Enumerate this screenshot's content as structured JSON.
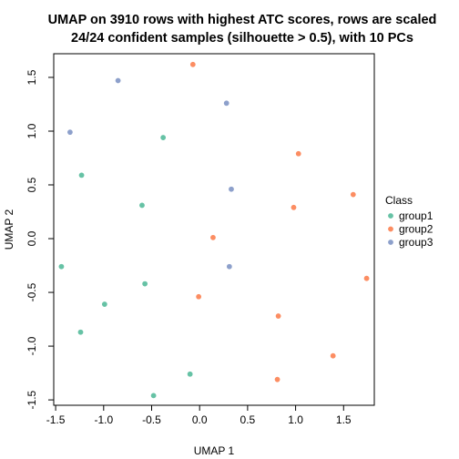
{
  "chart_data": {
    "type": "scatter",
    "title_line1": "UMAP on 3910 rows with highest ATC scores, rows are scaled",
    "title_line2": "24/24 confident samples (silhouette > 0.5), with 10 PCs",
    "xlabel": "UMAP 1",
    "ylabel": "UMAP 2",
    "xlim": [
      -1.52,
      1.82
    ],
    "ylim": [
      -1.55,
      1.72
    ],
    "xticks": [
      -1.5,
      -1.0,
      -0.5,
      0.0,
      0.5,
      1.0,
      1.5
    ],
    "xtick_labels": [
      "-1.5",
      "-1.0",
      "-0.5",
      "0.0",
      "0.5",
      "1.0",
      "1.5"
    ],
    "yticks": [
      -1.5,
      -1.0,
      -0.5,
      0.0,
      0.5,
      1.0,
      1.5
    ],
    "ytick_labels": [
      "-1.5",
      "-1.0",
      "-0.5",
      "0.0",
      "0.5",
      "1.0",
      "1.5"
    ],
    "grid": false,
    "legend": {
      "title": "Class",
      "placement": "right"
    },
    "series": [
      {
        "name": "group1",
        "color": "#66C2A5",
        "points": [
          [
            -0.38,
            0.94
          ],
          [
            -1.23,
            0.59
          ],
          [
            -0.6,
            0.31
          ],
          [
            -1.44,
            -0.26
          ],
          [
            -0.57,
            -0.42
          ],
          [
            -0.99,
            -0.61
          ],
          [
            -1.24,
            -0.87
          ],
          [
            -0.1,
            -1.26
          ],
          [
            -0.48,
            -1.46
          ]
        ]
      },
      {
        "name": "group2",
        "color": "#FC8D62",
        "points": [
          [
            -0.07,
            1.62
          ],
          [
            1.03,
            0.79
          ],
          [
            1.6,
            0.41
          ],
          [
            0.98,
            0.29
          ],
          [
            0.14,
            0.01
          ],
          [
            1.74,
            -0.37
          ],
          [
            -0.01,
            -0.54
          ],
          [
            0.82,
            -0.72
          ],
          [
            1.39,
            -1.09
          ],
          [
            0.81,
            -1.31
          ]
        ]
      },
      {
        "name": "group3",
        "color": "#8DA0CB",
        "points": [
          [
            -0.85,
            1.47
          ],
          [
            0.28,
            1.26
          ],
          [
            -1.35,
            0.99
          ],
          [
            0.33,
            0.46
          ],
          [
            0.31,
            -0.26
          ]
        ]
      }
    ]
  }
}
